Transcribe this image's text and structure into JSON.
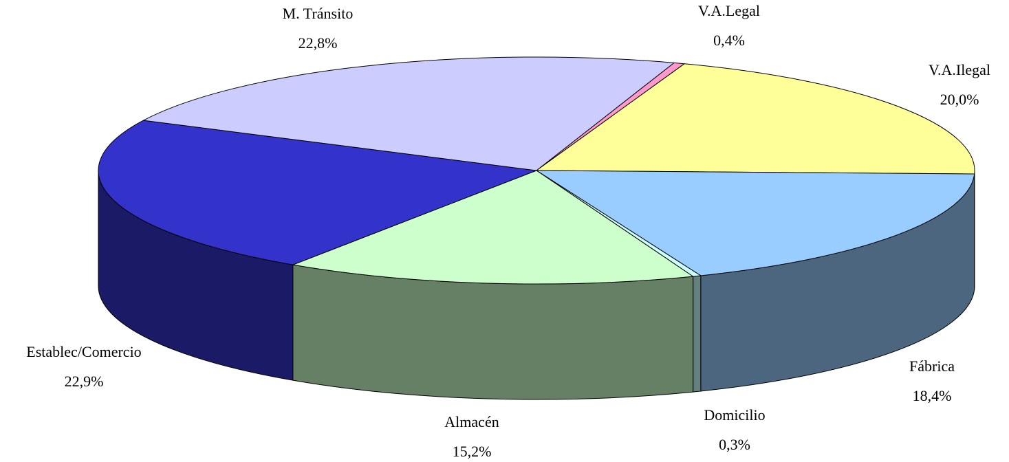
{
  "chart_data": {
    "type": "pie",
    "categories": [
      "V.A.Legal",
      "V.A.Ilegal",
      "Fábrica",
      "Domicilio",
      "Almacén",
      "Establec/Comercio",
      "M. Tránsito"
    ],
    "values": [
      0.4,
      20.0,
      18.4,
      0.3,
      15.2,
      22.9,
      22.8
    ],
    "value_labels": [
      "0,4%",
      "20,0%",
      "18,4%",
      "0,3%",
      "15,2%",
      "22,9%",
      "22,8%"
    ],
    "colors": [
      "#ff99cc",
      "#ffff99",
      "#99ccff",
      "#ccffff",
      "#ccffcc",
      "#3333cc",
      "#ccccff"
    ]
  }
}
